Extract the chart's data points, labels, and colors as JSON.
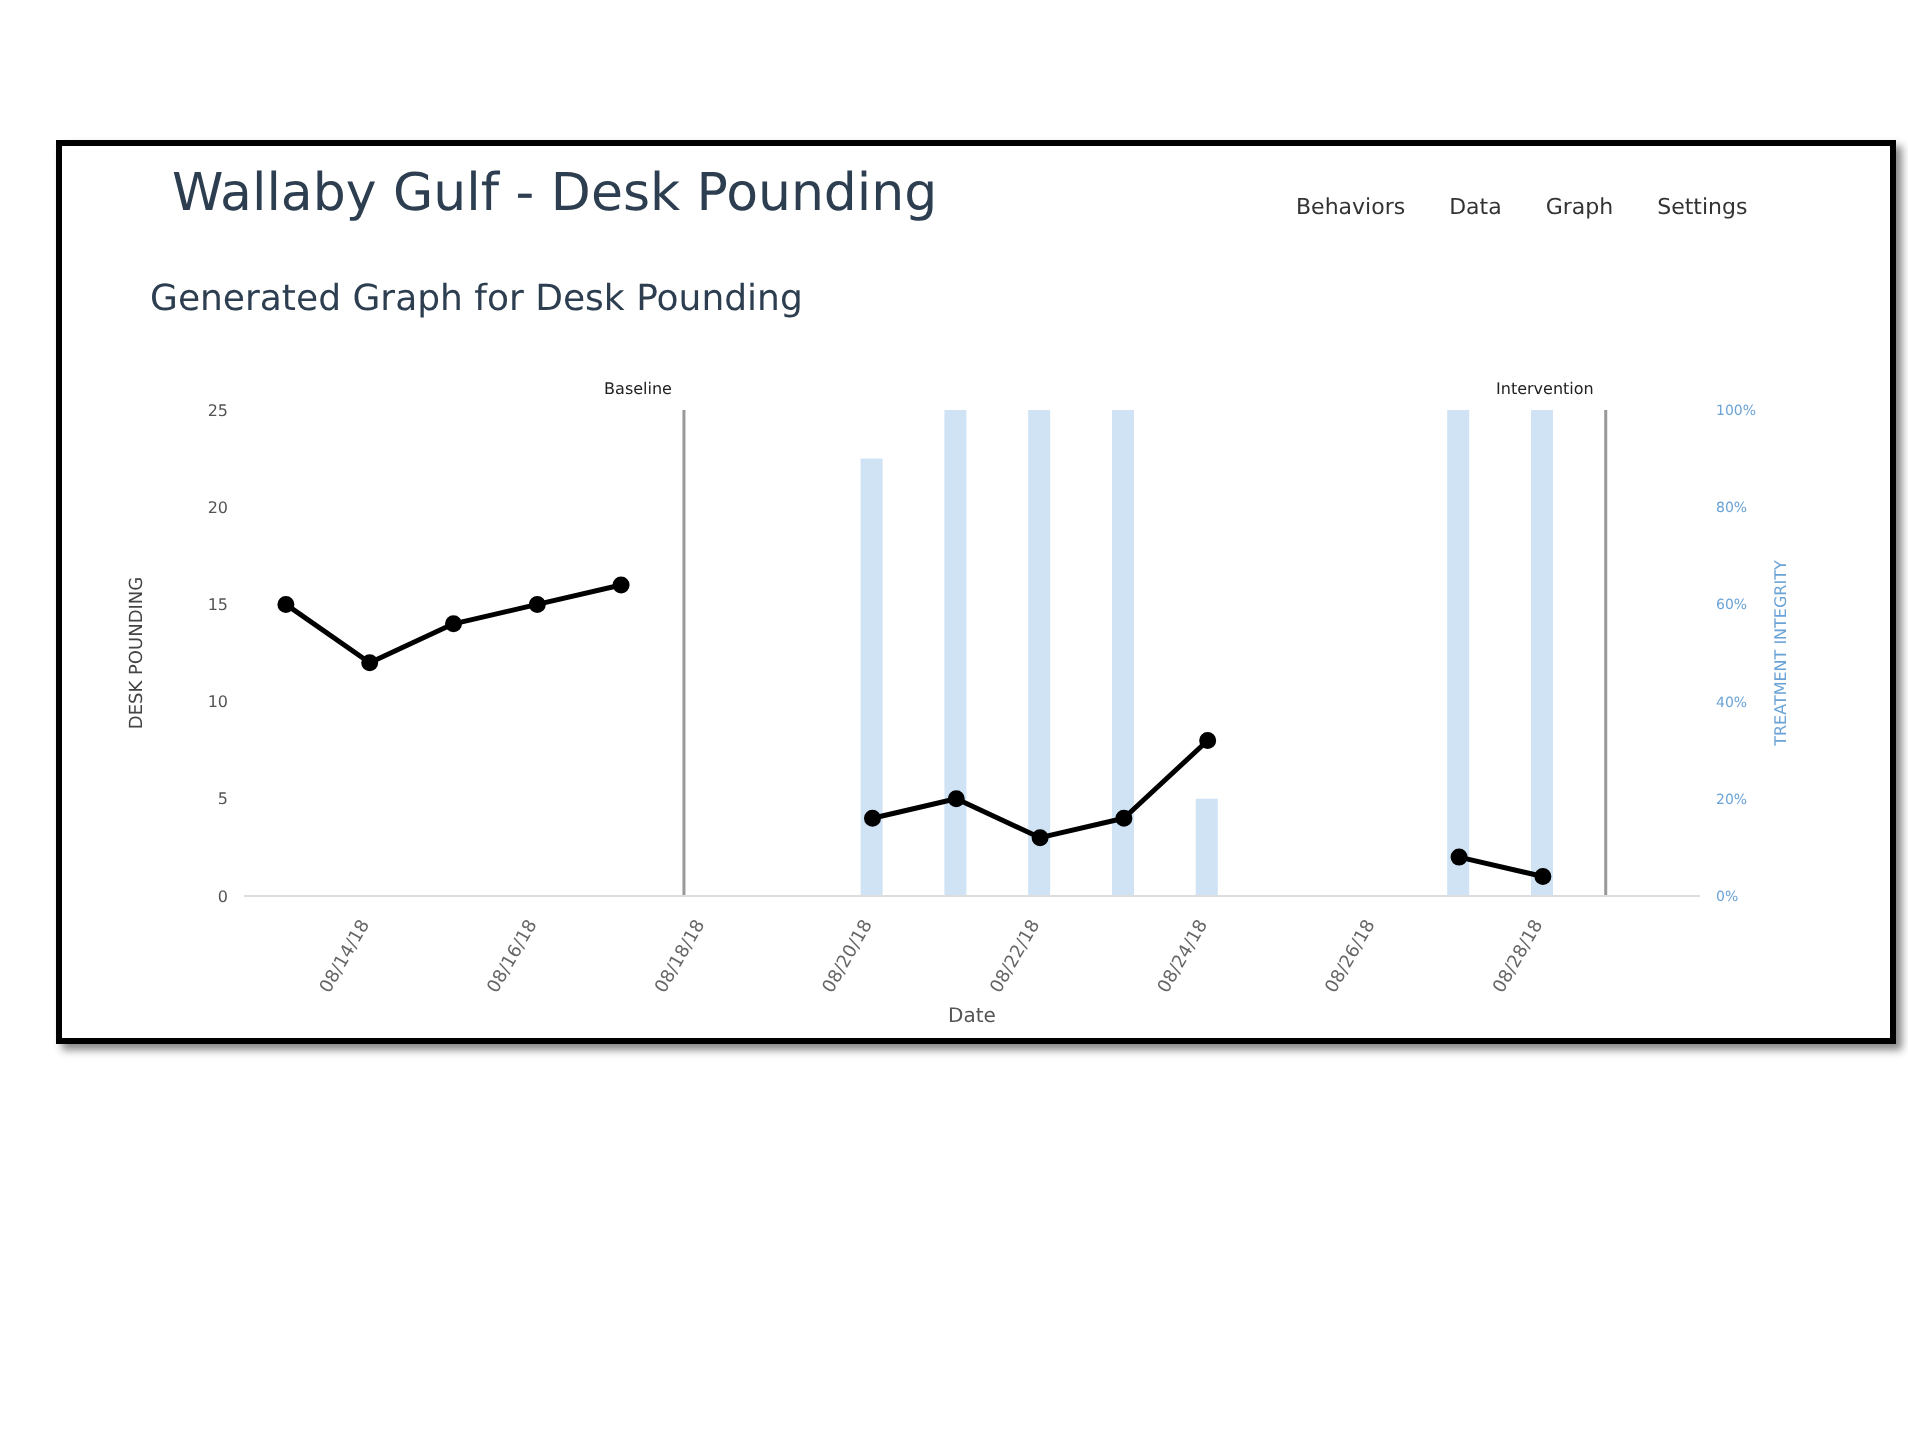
{
  "chart_data": {
    "type": "line",
    "title": "Wallaby Gulf - Desk Pounding",
    "subtitle": "Generated Graph for Desk Pounding",
    "xlabel": "Date",
    "ylabel": "DESK POUNDING",
    "y2label": "TREATMENT INTEGRITY",
    "annotations": [
      "Behaviors",
      "Data",
      "Graph",
      "Settings"
    ],
    "series": [
      {
        "type": "bar",
        "axis": "y2",
        "color": "#cfe3f5",
        "x": [
          "--08-20",
          "--08-21",
          "--08-22",
          "--08-23",
          "--08-24",
          "--08-27",
          "--08-28"
        ],
        "values": [
          90,
          100,
          100,
          100,
          20,
          100,
          100
        ]
      },
      {
        "color": "#000000",
        "x": [
          "--08-13",
          "--08-14",
          "--08-15",
          "--08-16",
          "--08-17",
          "--08-18",
          "--08-20",
          "--08-21",
          "--08-22",
          "--08-23",
          "--08-24",
          "--08-25",
          "--08-27",
          "--08-28"
        ],
        "values": [
          15,
          12,
          14,
          15,
          16,
          null,
          4,
          5,
          3,
          4,
          8,
          null,
          2,
          1
        ]
      }
    ],
    "xlim": [
      "--08-12T12:00",
      "--08-29T21:00"
    ],
    "xticks": [
      {
        "value": "--08-14",
        "label": "08/14/18"
      },
      {
        "value": "--08-16",
        "label": "08/16/18"
      },
      {
        "value": "--08-18",
        "label": "08/18/18"
      },
      {
        "value": "--08-20",
        "label": "08/20/18"
      },
      {
        "value": "--08-22",
        "label": "08/22/18"
      },
      {
        "value": "--08-24",
        "label": "08/24/18"
      },
      {
        "value": "--08-26",
        "label": "08/26/18"
      },
      {
        "value": "--08-28",
        "label": "08/28/18"
      }
    ],
    "ylim": [
      0,
      25
    ],
    "yticks": [
      0,
      5,
      10,
      15,
      20,
      25
    ],
    "y2lim": [
      0,
      100
    ],
    "y2ticks": [
      {
        "value": 0,
        "label": "0%"
      },
      {
        "value": 20,
        "label": "20%"
      },
      {
        "value": 40,
        "label": "40%"
      },
      {
        "value": 60,
        "label": "60%"
      },
      {
        "value": 80,
        "label": "80%"
      },
      {
        "value": 100,
        "label": "100%"
      }
    ],
    "ref_lines": [
      {
        "axis": "x",
        "value": "--08-17T18:00",
        "label": "Baseline",
        "color": "#999999"
      },
      {
        "axis": "x",
        "value": "--08-28T18:00",
        "label": "Intervention",
        "color": "#999999"
      }
    ],
    "marker": "circle",
    "grid": false,
    "legend": false
  }
}
